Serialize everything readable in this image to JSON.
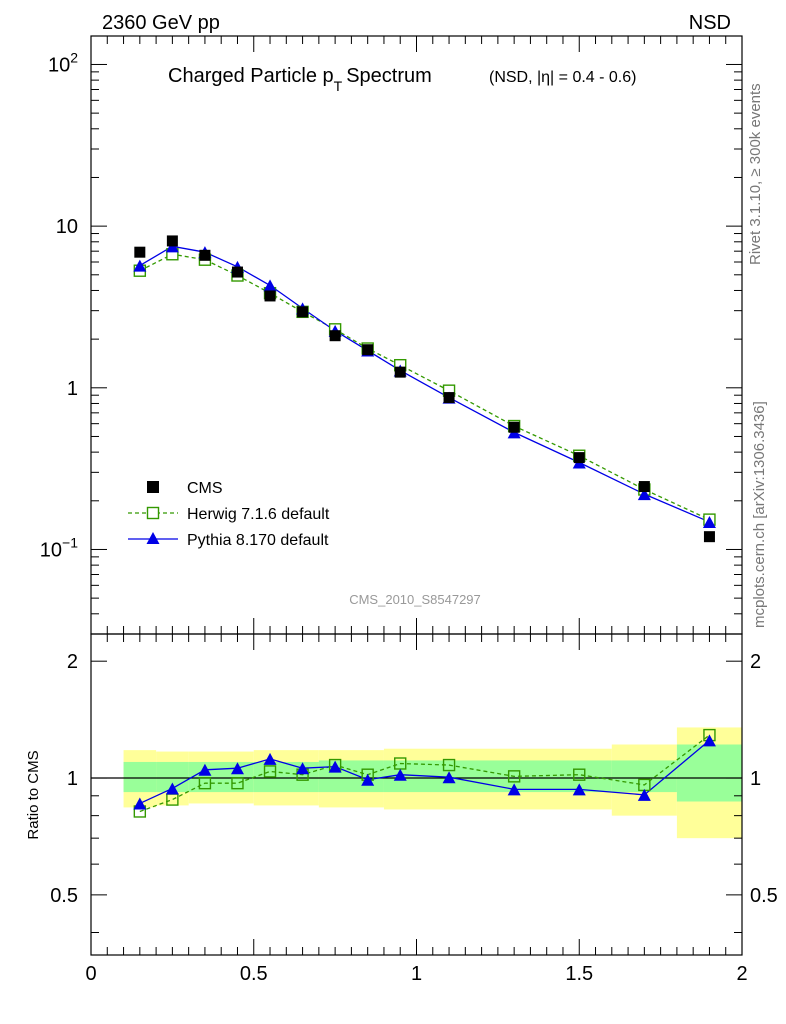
{
  "header": {
    "left": "2360 GeV pp",
    "right": "NSD"
  },
  "title": {
    "main": "Charged Particle p",
    "sub": "T",
    "main2": "Spectrum",
    "extra": "(NSD, |η| = 0.4 - 0.6)"
  },
  "side_labels": {
    "rivet": "Rivet 3.1.10, ≥ 300k events",
    "mcplots": "mcplots.cern.ch [arXiv:1306.3436]"
  },
  "analysis_id": "CMS_2010_S8547297",
  "colors": {
    "data": "#000000",
    "herwig": "#339900",
    "pythia": "#0000e6",
    "band_yellow": "#ffff99",
    "band_green": "#99ff99"
  },
  "chart_data": [
    {
      "type": "scatter",
      "scale": "log",
      "xlim": [
        0,
        2
      ],
      "ylim": [
        0.03,
        150
      ],
      "y_ticks": [
        {
          "value": 0.1,
          "base": "10",
          "exp": "−1"
        },
        {
          "value": 1,
          "base": "1",
          "exp": ""
        },
        {
          "value": 10,
          "base": "10",
          "exp": ""
        },
        {
          "value": 100,
          "base": "10",
          "exp": "2"
        }
      ],
      "x": [
        0.15,
        0.25,
        0.35,
        0.45,
        0.55,
        0.65,
        0.75,
        0.85,
        0.95,
        1.1,
        1.3,
        1.5,
        1.7,
        1.9
      ],
      "legend": [
        {
          "label": "CMS",
          "style": "square"
        },
        {
          "label": "Herwig 7.1.6 default",
          "style": "open-square-dashed"
        },
        {
          "label": "Pythia 8.170 default",
          "style": "triangle-solid"
        }
      ],
      "series": [
        {
          "name": "CMS",
          "values": [
            6.9,
            8.1,
            6.6,
            5.2,
            3.7,
            2.95,
            2.1,
            1.72,
            1.25,
            0.87,
            0.57,
            0.37,
            0.245,
            0.12
          ]
        },
        {
          "name": "Herwig 7.1.6 default",
          "values": [
            5.3,
            6.7,
            6.2,
            4.95,
            3.85,
            2.95,
            2.3,
            1.75,
            1.38,
            0.96,
            0.58,
            0.38,
            0.235,
            0.153
          ]
        },
        {
          "name": "Pythia 8.170 default",
          "values": [
            5.7,
            7.5,
            6.9,
            5.6,
            4.3,
            3.1,
            2.25,
            1.7,
            1.28,
            0.87,
            0.53,
            0.345,
            0.22,
            0.148
          ]
        }
      ]
    },
    {
      "type": "line",
      "ylabel": "Ratio to CMS",
      "xlim": [
        0,
        2
      ],
      "ylim": [
        0.35,
        2.35
      ],
      "x_ticks": [
        "0",
        "0.5",
        "1",
        "1.5",
        "2"
      ],
      "y_ticks": [
        "0.5",
        "1",
        "2"
      ],
      "x": [
        0.15,
        0.25,
        0.35,
        0.45,
        0.55,
        0.65,
        0.75,
        0.85,
        0.95,
        1.1,
        1.3,
        1.5,
        1.7,
        1.9
      ],
      "series": [
        {
          "name": "Herwig 7.1.6 default",
          "values": [
            0.82,
            0.88,
            0.97,
            0.97,
            1.04,
            1.02,
            1.08,
            1.02,
            1.09,
            1.08,
            1.01,
            1.02,
            0.96,
            1.29
          ]
        },
        {
          "name": "Pythia 8.170 default",
          "values": [
            0.86,
            0.94,
            1.05,
            1.06,
            1.12,
            1.06,
            1.07,
            0.99,
            1.02,
            1.005,
            0.935,
            0.935,
            0.905,
            1.25
          ]
        }
      ],
      "uncertainty_bands": [
        {
          "x0": 0.1,
          "x1": 0.2,
          "stat_lo": 0.92,
          "stat_hi": 1.1,
          "tot_lo": 0.84,
          "tot_hi": 1.18
        },
        {
          "x0": 0.2,
          "x1": 0.3,
          "stat_lo": 0.92,
          "stat_hi": 1.1,
          "tot_lo": 0.85,
          "tot_hi": 1.17
        },
        {
          "x0": 0.3,
          "x1": 0.5,
          "stat_lo": 0.92,
          "stat_hi": 1.1,
          "tot_lo": 0.86,
          "tot_hi": 1.17
        },
        {
          "x0": 0.5,
          "x1": 0.7,
          "stat_lo": 0.92,
          "stat_hi": 1.1,
          "tot_lo": 0.85,
          "tot_hi": 1.18
        },
        {
          "x0": 0.7,
          "x1": 0.9,
          "stat_lo": 0.92,
          "stat_hi": 1.11,
          "tot_lo": 0.84,
          "tot_hi": 1.18
        },
        {
          "x0": 0.9,
          "x1": 1.6,
          "stat_lo": 0.92,
          "stat_hi": 1.11,
          "tot_lo": 0.83,
          "tot_hi": 1.19
        },
        {
          "x0": 1.6,
          "x1": 1.8,
          "stat_lo": 0.92,
          "stat_hi": 1.11,
          "tot_lo": 0.8,
          "tot_hi": 1.22
        },
        {
          "x0": 1.8,
          "x1": 2.0,
          "stat_lo": 0.87,
          "stat_hi": 1.22,
          "tot_lo": 0.7,
          "tot_hi": 1.35
        }
      ]
    }
  ]
}
